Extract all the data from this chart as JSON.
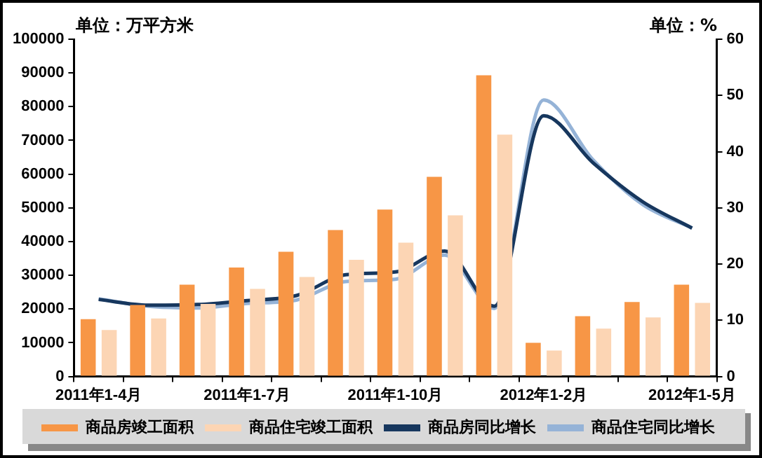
{
  "chart_data": {
    "type": "bar",
    "ylabel": "单位：万平方米",
    "y2label": "单位：%",
    "categories": [
      "2011年1-4月",
      null,
      null,
      "2011年1-7月",
      null,
      null,
      "2011年1-10月",
      null,
      null,
      "2012年1-2月",
      null,
      null,
      "2012年1-5月"
    ],
    "series": [
      {
        "name": "商品房竣工面积",
        "color": "#f79646",
        "values": [
          17000,
          21200,
          27200,
          32300,
          37000,
          43400,
          49500,
          59200,
          89300,
          10000,
          17900,
          22100,
          27200
        ]
      },
      {
        "name": "商品住宅竣工面积",
        "color": "#fcd5b4",
        "values": [
          13800,
          17200,
          21500,
          26000,
          29500,
          34600,
          39700,
          47800,
          71700,
          7700,
          14200,
          17500,
          21800
        ]
      },
      {
        "name": "商品房同比增长",
        "type": "line",
        "axis": "y2",
        "color": "#17375e",
        "values": [
          13.7,
          12.7,
          12.8,
          13.5,
          14.4,
          18.1,
          18.6,
          22.3,
          12.5,
          46.4,
          38.0,
          31.1,
          26.4
        ]
      },
      {
        "name": "商品住宅同比增长",
        "type": "line",
        "axis": "y2",
        "color": "#95b3d7",
        "values": [
          13.8,
          12.5,
          12.2,
          13.0,
          13.6,
          16.9,
          17.3,
          21.6,
          12.1,
          49.2,
          38.5,
          30.6,
          26.4
        ]
      }
    ],
    "ylim": [
      0,
      100000
    ],
    "yticks": [
      0,
      10000,
      20000,
      30000,
      40000,
      50000,
      60000,
      70000,
      80000,
      90000,
      100000
    ],
    "y2lim": [
      0,
      60
    ],
    "y2ticks": [
      0,
      10,
      20,
      30,
      40,
      50,
      60
    ],
    "grid": false,
    "legend": "bottom",
    "marker": "none"
  }
}
